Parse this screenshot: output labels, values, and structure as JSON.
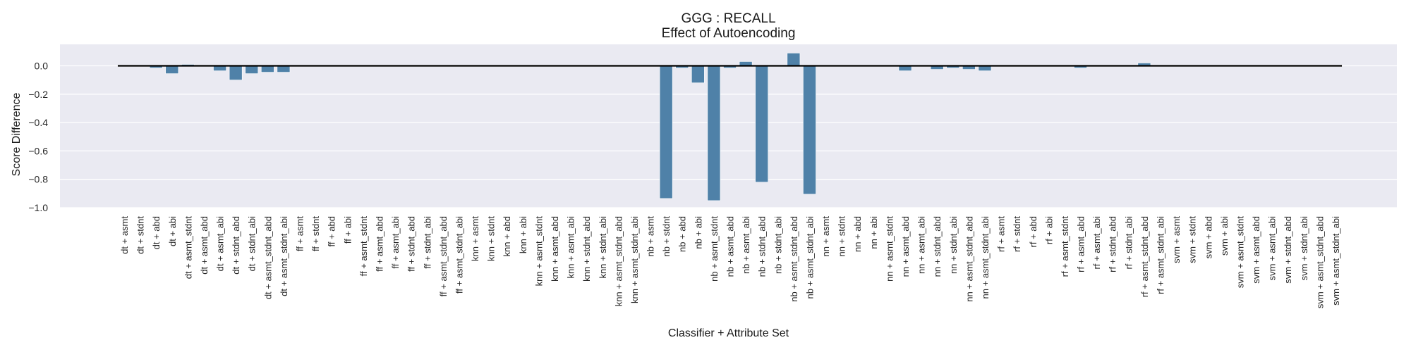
{
  "chart_data": {
    "type": "bar",
    "title": "GGG : RECALL",
    "subtitle": "Effect of Autoencoding",
    "xlabel": "Classifier + Attribute Set",
    "ylabel": "Score Difference",
    "ylim": [
      -1.0,
      0.15
    ],
    "yticks": [
      "0.0",
      "−0.2",
      "−0.4",
      "−0.6",
      "−0.8",
      "−1.0"
    ],
    "grid": true,
    "bar_color": "#4f81a8",
    "background_color": "#eaeaf2",
    "baseline": 0.0,
    "categories": [
      "dt + asmt",
      "dt + stdnt",
      "dt + abd",
      "dt + abi",
      "dt + asmt_stdnt",
      "dt + asmt_abd",
      "dt + asmt_abi",
      "dt + stdnt_abd",
      "dt + stdnt_abi",
      "dt + asmt_stdnt_abd",
      "dt + asmt_stdnt_abi",
      "ff + asmt",
      "ff + stdnt",
      "ff + abd",
      "ff + abi",
      "ff + asmt_stdnt",
      "ff + asmt_abd",
      "ff + asmt_abi",
      "ff + stdnt_abd",
      "ff + stdnt_abi",
      "ff + asmt_stdnt_abd",
      "ff + asmt_stdnt_abi",
      "knn + asmt",
      "knn + stdnt",
      "knn + abd",
      "knn + abi",
      "knn + asmt_stdnt",
      "knn + asmt_abd",
      "knn + asmt_abi",
      "knn + stdnt_abd",
      "knn + stdnt_abi",
      "knn + asmt_stdnt_abd",
      "knn + asmt_stdnt_abi",
      "nb + asmt",
      "nb + stdnt",
      "nb + abd",
      "nb + abi",
      "nb + asmt_stdnt",
      "nb + asmt_abd",
      "nb + asmt_abi",
      "nb + stdnt_abd",
      "nb + stdnt_abi",
      "nb + asmt_stdnt_abd",
      "nb + asmt_stdnt_abi",
      "nn + asmt",
      "nn + stdnt",
      "nn + abd",
      "nn + abi",
      "nn + asmt_stdnt",
      "nn + asmt_abd",
      "nn + asmt_abi",
      "nn + stdnt_abd",
      "nn + stdnt_abi",
      "nn + asmt_stdnt_abd",
      "nn + asmt_stdnt_abi",
      "rf + asmt",
      "rf + stdnt",
      "rf + abd",
      "rf + abi",
      "rf + asmt_stdnt",
      "rf + asmt_abd",
      "rf + asmt_abi",
      "rf + stdnt_abd",
      "rf + stdnt_abi",
      "rf + asmt_stdnt_abd",
      "rf + asmt_stdnt_abi",
      "svm + asmt",
      "svm + stdnt",
      "svm + abd",
      "svm + abi",
      "svm + asmt_stdnt",
      "svm + asmt_abd",
      "svm + asmt_abi",
      "svm + stdnt_abd",
      "svm + stdnt_abi",
      "svm + asmt_stdnt_abd",
      "svm + asmt_stdnt_abi"
    ],
    "values": [
      0.0,
      0.0,
      -0.015,
      -0.055,
      0.01,
      0.0,
      -0.035,
      -0.1,
      -0.055,
      -0.045,
      -0.045,
      0.0,
      0.0,
      0.0,
      0.0,
      0.0,
      0.0,
      0.0,
      0.0,
      0.0,
      0.0,
      0.0,
      0.0,
      0.0,
      0.0,
      0.0,
      0.0,
      0.0,
      0.0,
      0.0,
      0.0,
      0.0,
      0.0,
      0.0,
      -0.935,
      -0.015,
      -0.12,
      -0.95,
      -0.015,
      0.03,
      -0.82,
      0.0,
      0.09,
      -0.905,
      0.0,
      0.0,
      0.0,
      0.0,
      0.0,
      -0.035,
      0.0,
      -0.025,
      -0.015,
      -0.025,
      -0.035,
      0.0,
      0.0,
      0.0,
      0.0,
      0.0,
      -0.015,
      0.0,
      0.0,
      0.0,
      0.02,
      0.0,
      0.0,
      0.0,
      0.0,
      0.0,
      0.0,
      0.0,
      0.0,
      0.0,
      0.0,
      0.0,
      0.0
    ]
  }
}
